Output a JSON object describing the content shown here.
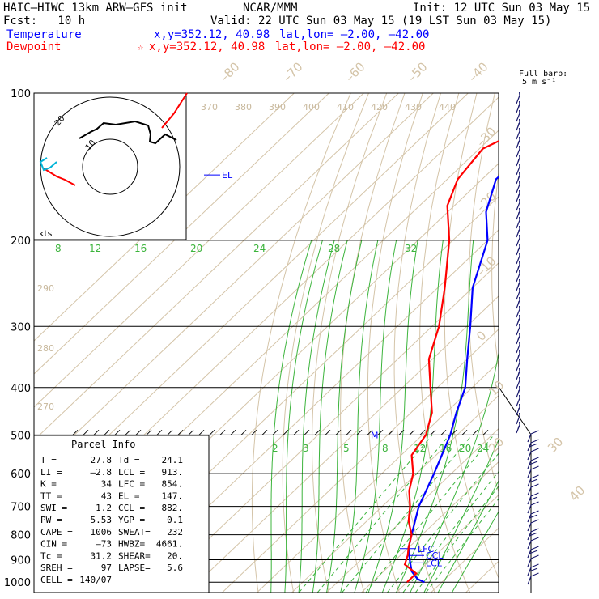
{
  "header": {
    "model": "HAIC–HIWC 13km ARW–GFS init",
    "org": "NCAR/MMM",
    "init": "Init: 12 UTC Sun 03 May 15",
    "fcst": "Fcst:   10 h",
    "valid": "Valid: 22 UTC Sun 03 May 15 (19 LST Sun 03 May 15)"
  },
  "legend": {
    "temperature": {
      "label": "Temperature",
      "xy": "x,y=352.12, 40.98",
      "latlon": "lat,lon= –2.00, –42.00",
      "color": "#0000ff"
    },
    "dewpoint": {
      "label": "Dewpoint",
      "marker": "☆",
      "xy": "x,y=352.12, 40.98",
      "latlon": "lat,lon= –2.00, –42.00",
      "color": "#ff0000"
    }
  },
  "wind_barb_legend": {
    "line1": "Full barb:",
    "line2": "5 m s⁻¹"
  },
  "hodograph": {
    "units": "kts",
    "ring_labels": [
      "20",
      "10"
    ]
  },
  "parcel_info": {
    "title": "Parcel Info",
    "rows": [
      [
        "T    =",
        "27.8",
        "Td =",
        "24.1"
      ],
      [
        "LI   =",
        "–2.8",
        "LCL =",
        "913."
      ],
      [
        "K    =",
        "34",
        "LFC =",
        "854."
      ],
      [
        "TT   =",
        "43",
        "EL  =",
        "147."
      ],
      [
        "SWI  =",
        "1.2",
        "CCL =",
        "882."
      ],
      [
        "PW   =",
        "5.53",
        "YGP =",
        "0.1"
      ],
      [
        "CAPE =",
        "1006",
        "SWEAT=",
        "232"
      ],
      [
        "CIN  =",
        "–73",
        "HWBZ=",
        "4661."
      ],
      [
        "Tc   =",
        "31.2",
        "SHEAR=",
        "20."
      ],
      [
        "SREH =",
        "97",
        "LAPSE=",
        "5.6"
      ],
      [
        "CELL =",
        "140/07",
        "",
        ""
      ]
    ]
  },
  "chart_data": {
    "type": "skew-t",
    "pressure_axis_labels": [
      "100",
      "200",
      "300",
      "400",
      "500",
      "600",
      "700",
      "800",
      "900",
      "1000"
    ],
    "pressure_levels": [
      100,
      200,
      300,
      400,
      500,
      600,
      700,
      800,
      900,
      1000
    ],
    "isotherm_labels": [
      "–80",
      "–70",
      "–60",
      "–50",
      "–40",
      "–30",
      "–20",
      "–10",
      "0",
      "10",
      "20",
      "30",
      "40"
    ],
    "theta_e_labels": [
      "370",
      "380",
      "390",
      "400",
      "410",
      "420",
      "430",
      "440"
    ],
    "theta_labels": [
      "290",
      "280",
      "270"
    ],
    "upper_mixing_ratio_labels": [
      "8",
      "12",
      "16",
      "20",
      "24",
      "28",
      "32"
    ],
    "lower_mixing_ratio_labels": [
      "2",
      "3",
      "5",
      "8",
      "12",
      "16",
      "20",
      "24"
    ],
    "level_markers": [
      "EL",
      "LFC",
      "CCL",
      "LCL",
      "M"
    ],
    "series": [
      {
        "name": "Temperature",
        "color": "#0000ff",
        "points": [
          [
            1000,
            25
          ],
          [
            985,
            22
          ],
          [
            950,
            18
          ],
          [
            900,
            14
          ],
          [
            850,
            10
          ],
          [
            800,
            7
          ],
          [
            700,
            0.5
          ],
          [
            600,
            -5
          ],
          [
            500,
            -12
          ],
          [
            450,
            -17
          ],
          [
            400,
            -22
          ],
          [
            350,
            -30
          ],
          [
            300,
            -39
          ],
          [
            250,
            -50
          ],
          [
            200,
            -60
          ],
          [
            175,
            -69
          ],
          [
            150,
            -76
          ],
          [
            120,
            -75
          ],
          [
            100,
            -70
          ]
        ]
      },
      {
        "name": "Dewpoint",
        "color": "#ff0000",
        "points": [
          [
            1000,
            20
          ],
          [
            960,
            20
          ],
          [
            920,
            14
          ],
          [
            880,
            12
          ],
          [
            850,
            10
          ],
          [
            800,
            7
          ],
          [
            750,
            2
          ],
          [
            700,
            -2
          ],
          [
            650,
            -7
          ],
          [
            600,
            -11
          ],
          [
            550,
            -17
          ],
          [
            500,
            -19
          ],
          [
            450,
            -24
          ],
          [
            400,
            -32
          ],
          [
            350,
            -41
          ],
          [
            300,
            -48
          ],
          [
            250,
            -58
          ],
          [
            200,
            -71
          ],
          [
            170,
            -82
          ],
          [
            150,
            -87
          ],
          [
            130,
            -89
          ],
          [
            120,
            -84
          ],
          [
            100,
            -79
          ]
        ]
      }
    ]
  }
}
